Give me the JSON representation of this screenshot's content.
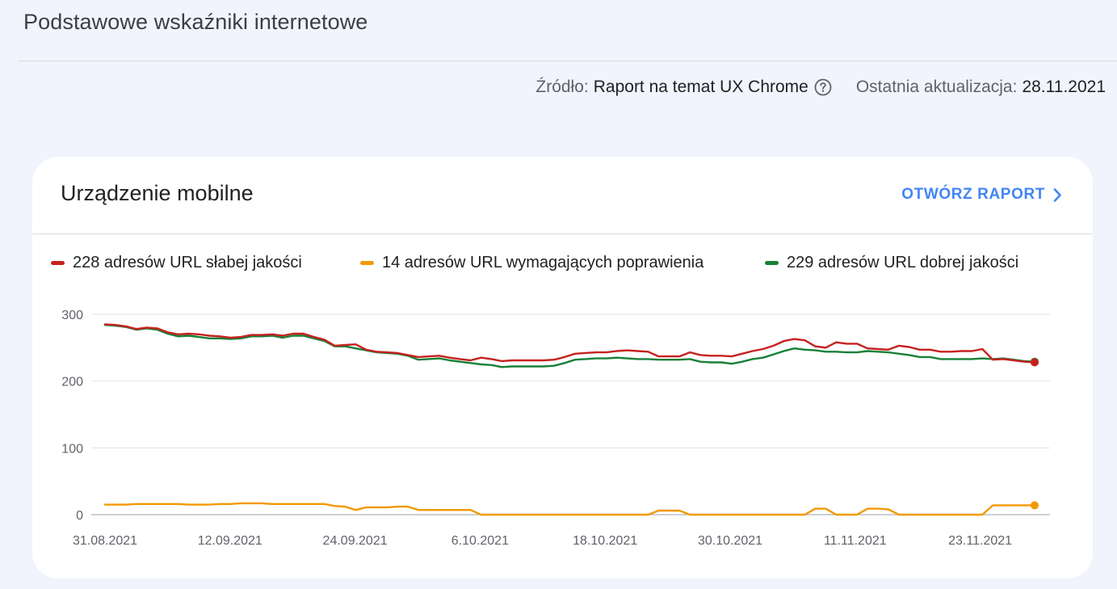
{
  "header": {
    "title": "Podstawowe wskaźniki internetowe"
  },
  "meta": {
    "source_label": "Źródło:",
    "source_value": "Raport na temat UX Chrome",
    "help_icon": "help-circle-icon",
    "updated_label": "Ostatnia aktualizacja:",
    "updated_value": "28.11.2021"
  },
  "card": {
    "title": "Urządzenie mobilne",
    "open_report_label": "OTWÓRZ RAPORT",
    "open_report_icon": "chevron-right-icon"
  },
  "legend": [
    {
      "label": "228 adresów URL słabej jakości",
      "color": "#c5221f"
    },
    {
      "label": "14 adresów URL wymagających poprawienia",
      "color": "#f29900"
    },
    {
      "label": "229 adresów URL dobrej jakości",
      "color": "#188038"
    }
  ],
  "chart_data": {
    "type": "line",
    "x_start": "31.08.2021",
    "x_end": "28.11.2021",
    "x_tick_labels": [
      "31.08.2021",
      "12.09.2021",
      "24.09.2021",
      "6.10.2021",
      "18.10.2021",
      "30.10.2021",
      "11.11.2021",
      "23.11.2021"
    ],
    "y_tick_labels": [
      "0",
      "100",
      "200",
      "300"
    ],
    "ylim": [
      0,
      300
    ],
    "grid": true,
    "legend_position": "top",
    "series": [
      {
        "name": "228 adresów URL słabej jakości",
        "color": "#c5221f",
        "values": [
          285,
          284,
          282,
          278,
          280,
          279,
          273,
          270,
          271,
          270,
          268,
          267,
          265,
          266,
          269,
          269,
          270,
          268,
          271,
          271,
          266,
          262,
          253,
          254,
          255,
          247,
          244,
          243,
          242,
          239,
          236,
          237,
          238,
          235,
          233,
          231,
          235,
          233,
          230,
          231,
          231,
          231,
          231,
          232,
          236,
          241,
          242,
          243,
          243,
          245,
          246,
          245,
          244,
          237,
          237,
          237,
          243,
          239,
          238,
          238,
          237,
          241,
          245,
          248,
          253,
          260,
          263,
          261,
          252,
          250,
          258,
          256,
          256,
          249,
          248,
          247,
          253,
          251,
          247,
          247,
          244,
          244,
          245,
          245,
          248,
          232,
          233,
          231,
          229,
          228
        ]
      },
      {
        "name": "14 adresów URL wymagających poprawienia",
        "color": "#f29900",
        "values": [
          15,
          15,
          15,
          16,
          16,
          16,
          16,
          16,
          15,
          15,
          15,
          16,
          16,
          17,
          17,
          17,
          16,
          16,
          16,
          16,
          16,
          16,
          13,
          12,
          7,
          11,
          11,
          11,
          12,
          12,
          7,
          7,
          7,
          7,
          7,
          7,
          0,
          0,
          0,
          0,
          0,
          0,
          0,
          0,
          0,
          0,
          0,
          0,
          0,
          0,
          0,
          0,
          0,
          6,
          6,
          6,
          0,
          0,
          0,
          0,
          0,
          0,
          0,
          0,
          0,
          0,
          0,
          0,
          9,
          9,
          0,
          0,
          0,
          9,
          9,
          8,
          0,
          0,
          0,
          0,
          0,
          0,
          0,
          0,
          0,
          14,
          14,
          14,
          14,
          14
        ]
      },
      {
        "name": "229 adresów URL dobrej jakości",
        "color": "#188038",
        "values": [
          284,
          283,
          281,
          277,
          279,
          277,
          271,
          267,
          268,
          266,
          264,
          264,
          263,
          264,
          267,
          267,
          268,
          265,
          268,
          268,
          264,
          260,
          252,
          252,
          249,
          246,
          243,
          242,
          241,
          238,
          232,
          233,
          234,
          231,
          229,
          227,
          225,
          224,
          221,
          222,
          222,
          222,
          222,
          223,
          227,
          232,
          233,
          234,
          234,
          235,
          234,
          233,
          233,
          232,
          232,
          232,
          233,
          229,
          228,
          228,
          226,
          229,
          233,
          235,
          240,
          245,
          249,
          247,
          246,
          244,
          244,
          243,
          243,
          245,
          244,
          243,
          241,
          239,
          236,
          236,
          233,
          233,
          233,
          233,
          234,
          233,
          234,
          232,
          230,
          229
        ]
      }
    ]
  }
}
